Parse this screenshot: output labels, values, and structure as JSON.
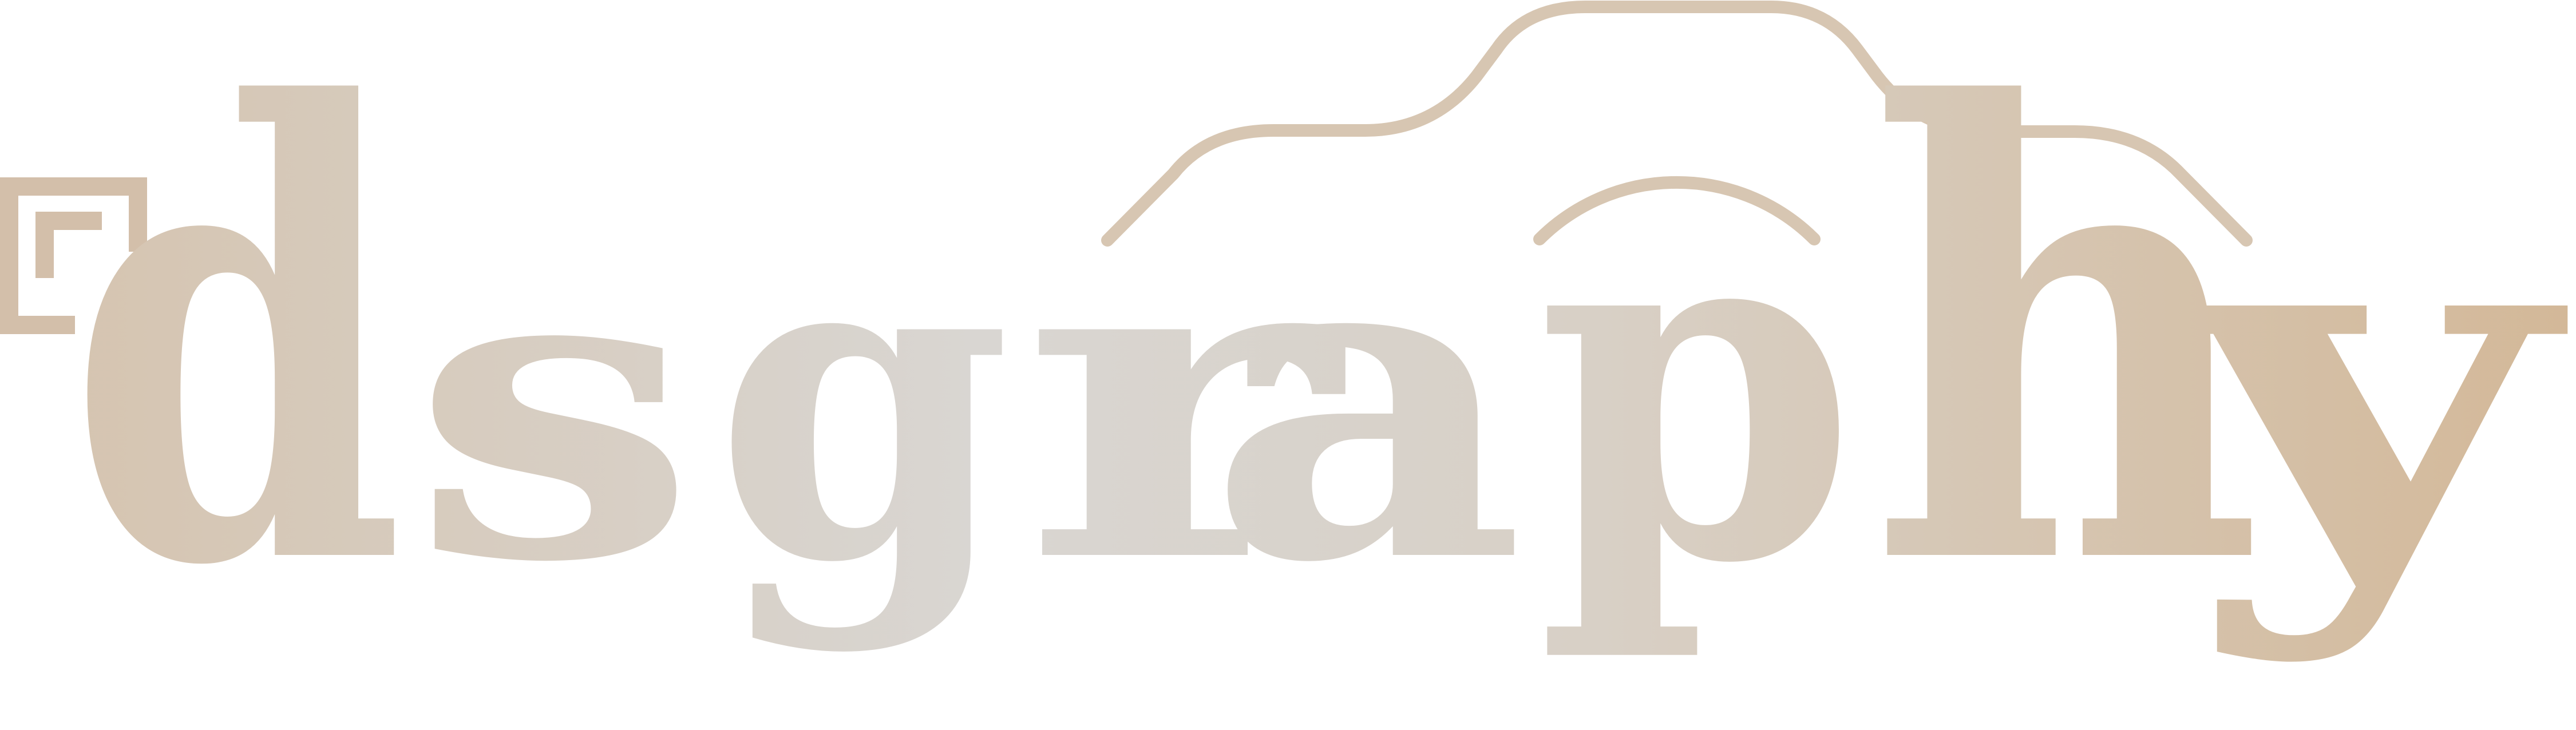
{
  "logo": {
    "wordmark": "dsgraphy",
    "letters": [
      "d",
      "s",
      "g",
      "r",
      "a",
      "p",
      "h",
      "y"
    ],
    "icons": [
      "viewfinder-corner-icon",
      "camera-outline-icon",
      "camera-lens-arc-icon"
    ]
  },
  "colors": {
    "gradient_start": "#d5c3ae",
    "gradient_mid": "#d9d6d2",
    "gradient_end": "#d3b898",
    "camera_outline": "#d7c6b2",
    "viewfinder": "#d3bfaa",
    "background": "#ffffff"
  }
}
